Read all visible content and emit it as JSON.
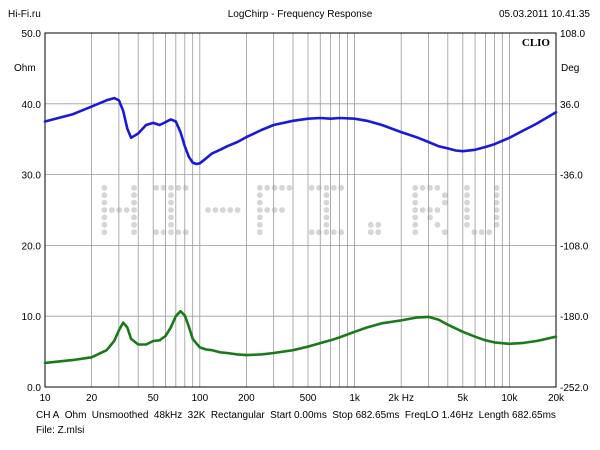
{
  "header": {
    "site": "Hi-Fi.ru",
    "title": "LogChirp - Frequency Response",
    "datetime": "05.03.2011 10.41.35"
  },
  "brand": {
    "logo_text": "CLIO"
  },
  "watermark": {
    "text": "HI-FI.RU"
  },
  "axes": {
    "left_unit": "Ohm",
    "right_unit": "Deg"
  },
  "footer": {
    "settings": [
      "CH A",
      "Ohm",
      "Unsmoothed",
      "48kHz",
      "32K",
      "Rectangular",
      "Start 0.00ms",
      "Stop 682.65ms",
      "FreqLO 1.46Hz",
      "Length 682.65ms"
    ],
    "file": "File: Z.mlsi"
  },
  "colors": {
    "impedance": "#1a1ad6",
    "phase": "#1a7a1a",
    "grid": "#9a9a9a",
    "frame": "#000000",
    "watermark": "#d6d6d6"
  },
  "chart_data": {
    "type": "line",
    "x_scale": "log",
    "xlim": [
      10,
      20000
    ],
    "x_ticks": [
      10,
      20,
      50,
      100,
      200,
      500,
      1000,
      2000,
      5000,
      10000,
      20000
    ],
    "x_tick_labels": [
      "10",
      "20",
      "50",
      "100",
      "200",
      "500",
      "1k",
      "2k Hz",
      "5k",
      "10k",
      "20k"
    ],
    "ylim_left": [
      0,
      50
    ],
    "y_left_ticks": [
      0,
      10,
      20,
      30,
      40,
      50
    ],
    "y_left_tick_labels": [
      "0.0",
      "10.0",
      "20.0",
      "30.0",
      "40.0",
      "50.0"
    ],
    "ylim_right": [
      -252,
      108
    ],
    "y_right_ticks": [
      -252,
      -180,
      -108,
      -36,
      36,
      108
    ],
    "y_right_tick_labels": [
      "-252.0",
      "-180.0",
      "-108.0",
      "-36.0",
      "36.0",
      "108.0"
    ],
    "grid": true,
    "series": [
      {
        "axis": "left",
        "color": "#1a1ad6",
        "x": [
          10,
          15,
          20,
          25,
          28,
          30,
          32,
          34,
          36,
          40,
          45,
          50,
          55,
          60,
          65,
          70,
          75,
          80,
          85,
          90,
          95,
          100,
          110,
          120,
          135,
          150,
          175,
          200,
          250,
          300,
          400,
          500,
          600,
          700,
          800,
          1000,
          1200,
          1500,
          2000,
          2500,
          3000,
          3500,
          4000,
          4500,
          5000,
          6000,
          7000,
          8000,
          10000,
          12000,
          15000,
          20000
        ],
        "y": [
          37.5,
          38.5,
          39.6,
          40.5,
          40.8,
          40.5,
          39.0,
          36.5,
          35.2,
          35.8,
          37.0,
          37.3,
          37.0,
          37.4,
          37.8,
          37.5,
          36.0,
          34.0,
          32.5,
          31.7,
          31.5,
          31.6,
          32.3,
          33.0,
          33.5,
          34.0,
          34.6,
          35.3,
          36.3,
          37.0,
          37.6,
          37.9,
          38.0,
          37.9,
          38.0,
          37.9,
          37.6,
          37.0,
          36.0,
          35.3,
          34.6,
          34.0,
          33.7,
          33.4,
          33.3,
          33.5,
          33.9,
          34.3,
          35.2,
          36.1,
          37.2,
          38.8
        ]
      },
      {
        "axis": "left",
        "color": "#1a7a1a",
        "x": [
          10,
          15,
          20,
          25,
          28,
          30,
          32,
          34,
          36,
          40,
          45,
          50,
          55,
          60,
          65,
          70,
          75,
          80,
          85,
          90,
          100,
          110,
          120,
          135,
          150,
          175,
          200,
          250,
          300,
          400,
          500,
          600,
          700,
          800,
          1000,
          1200,
          1500,
          2000,
          2500,
          3000,
          3500,
          4000,
          5000,
          6000,
          7000,
          8000,
          10000,
          12000,
          15000,
          20000
        ],
        "y": [
          3.4,
          3.8,
          4.2,
          5.2,
          6.5,
          8.0,
          9.1,
          8.4,
          6.8,
          6.0,
          6.0,
          6.5,
          6.6,
          7.2,
          8.4,
          10.0,
          10.7,
          10.1,
          8.5,
          6.8,
          5.6,
          5.3,
          5.2,
          4.9,
          4.8,
          4.6,
          4.5,
          4.6,
          4.8,
          5.2,
          5.7,
          6.2,
          6.6,
          7.0,
          7.8,
          8.4,
          9.0,
          9.4,
          9.8,
          9.9,
          9.5,
          8.8,
          7.8,
          7.1,
          6.6,
          6.3,
          6.1,
          6.2,
          6.5,
          7.1
        ]
      }
    ]
  }
}
